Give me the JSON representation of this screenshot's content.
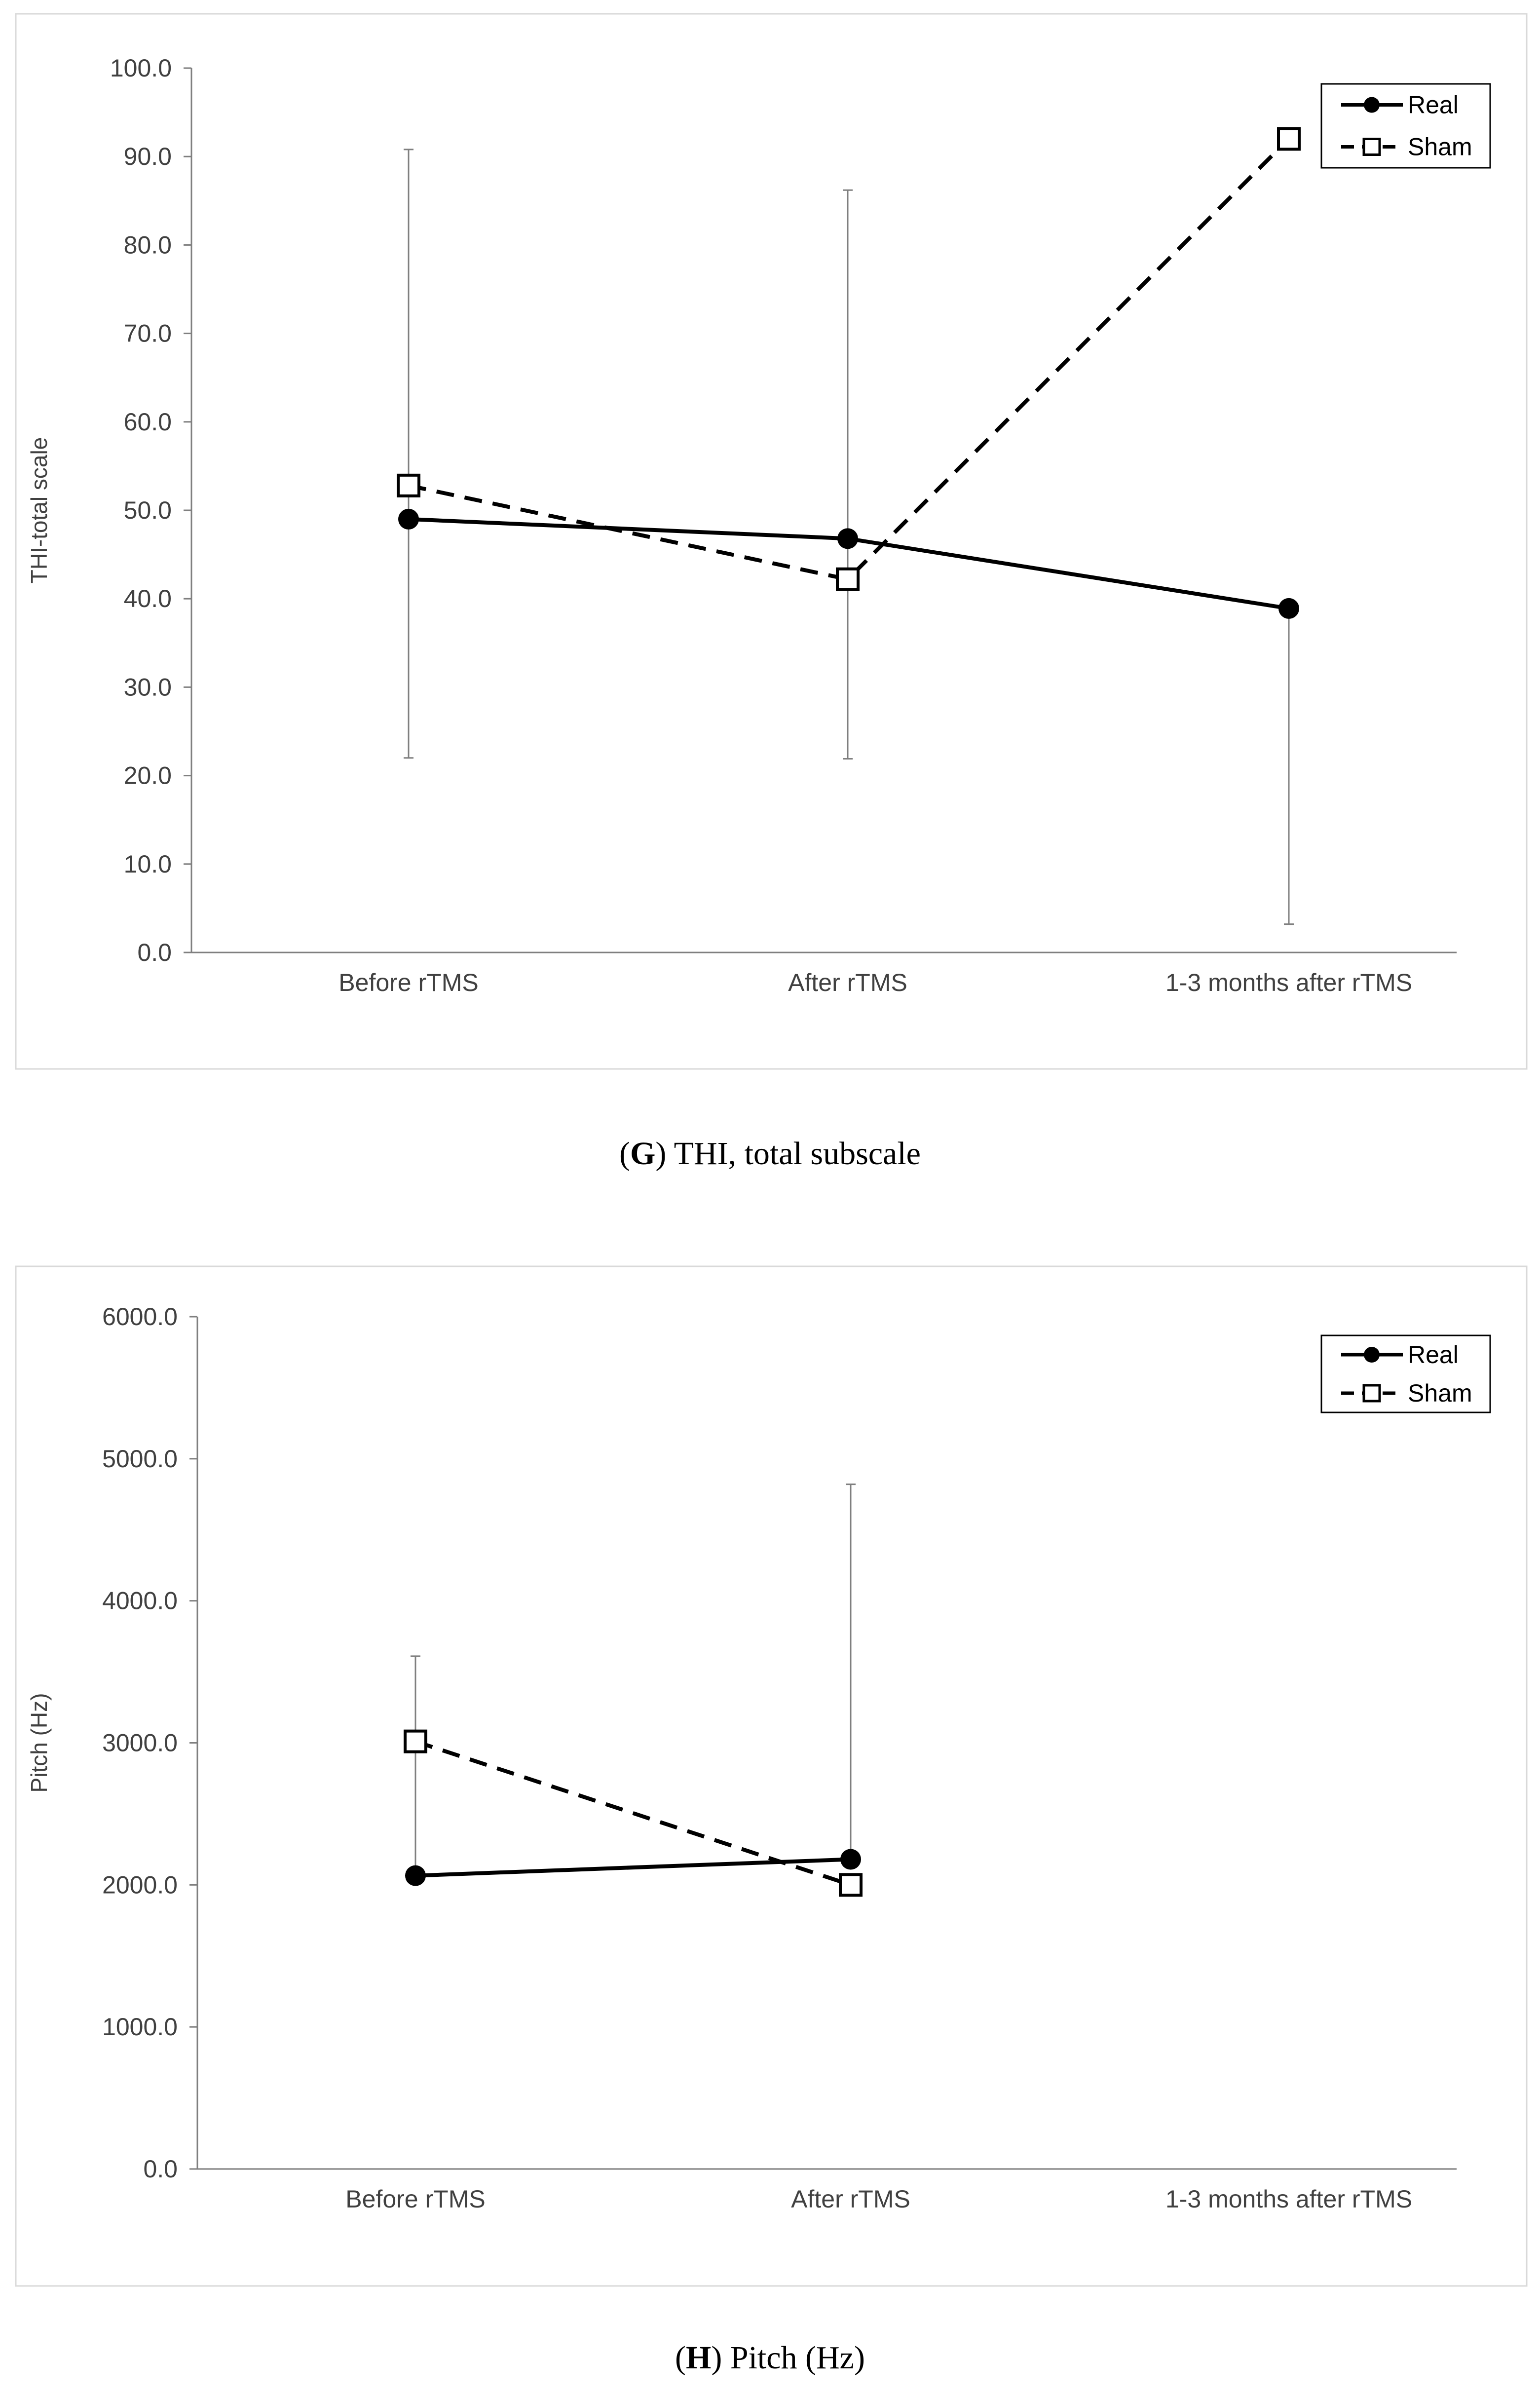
{
  "chart_data": [
    {
      "type": "line",
      "ylabel": "THI-total  scale",
      "xlabel": "",
      "ylim": [
        0,
        100
      ],
      "ytick_step": 10,
      "tick_labels": [
        "0.0",
        "10.0",
        "20.0",
        "30.0",
        "40.0",
        "50.0",
        "60.0",
        "70.0",
        "80.0",
        "90.0",
        "100.0"
      ],
      "categories": [
        "Before rTMS",
        "After rTMS",
        "1-3 months after rTMS"
      ],
      "legend_position": "top-right",
      "series": [
        {
          "name": "Real",
          "style": "solid",
          "marker": "filled-circle",
          "values": [
            49.0,
            46.8,
            38.9
          ],
          "err_low": [
            22.0,
            21.9,
            3.2
          ],
          "err_high": [
            90.8,
            86.2,
            38.9
          ]
        },
        {
          "name": "Sham",
          "style": "dashed",
          "marker": "open-square",
          "values": [
            52.8,
            42.2,
            92.0
          ],
          "err_low": [
            52.8,
            42.2,
            92.0
          ],
          "err_high": [
            52.8,
            42.2,
            92.0
          ]
        }
      ],
      "caption_letter": "G",
      "caption_text": "THI, total subscale"
    },
    {
      "type": "line",
      "ylabel": "Pitch (Hz)",
      "xlabel": "",
      "ylim": [
        0,
        6000
      ],
      "ytick_step": 1000,
      "tick_labels": [
        "0.0",
        "1000.0",
        "2000.0",
        "3000.0",
        "4000.0",
        "5000.0",
        "6000.0"
      ],
      "categories": [
        "Before rTMS",
        "After rTMS",
        "1-3 months after rTMS"
      ],
      "legend_position": "top-right",
      "series": [
        {
          "name": "Real",
          "style": "solid",
          "marker": "filled-circle",
          "values": [
            2065,
            2180,
            null
          ],
          "err_low": [
            2065,
            2180,
            null
          ],
          "err_high": [
            2065,
            4820,
            null
          ]
        },
        {
          "name": "Sham",
          "style": "dashed",
          "marker": "open-square",
          "values": [
            3010,
            2000,
            null
          ],
          "err_low": [
            2065,
            2000,
            null
          ],
          "err_high": [
            3610,
            2000,
            null
          ]
        }
      ],
      "caption_letter": "H",
      "caption_text": "Pitch (Hz)"
    }
  ]
}
